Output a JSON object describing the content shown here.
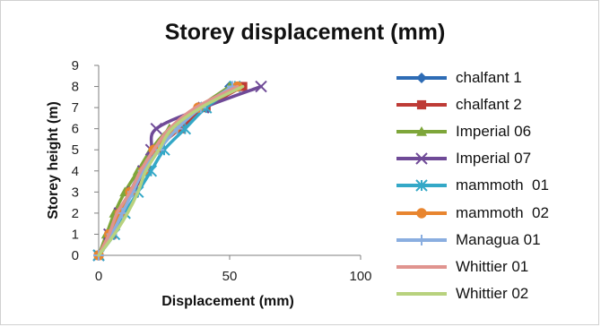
{
  "chart_data": {
    "type": "line",
    "title": "Storey displacement (mm)",
    "xlabel": "Displacement (mm)",
    "ylabel": "Storey height (m)",
    "xlim": [
      0,
      100
    ],
    "ylim": [
      0,
      9
    ],
    "xticks": [
      "0",
      "50",
      "100"
    ],
    "yticks": [
      "0",
      "1",
      "2",
      "3",
      "4",
      "5",
      "6",
      "7",
      "8",
      "9"
    ],
    "grid": false,
    "legend_position": "right",
    "series": [
      {
        "name": "chalfant 1",
        "color": "#2e6cb5",
        "marker": "diamond",
        "points": [
          [
            0,
            0
          ],
          [
            4,
            1
          ],
          [
            8,
            2
          ],
          [
            12,
            3
          ],
          [
            16,
            4
          ],
          [
            21,
            5
          ],
          [
            29,
            6
          ],
          [
            39,
            7
          ],
          [
            50,
            8
          ]
        ]
      },
      {
        "name": "chalfant 2",
        "color": "#be3b36",
        "marker": "square",
        "points": [
          [
            0,
            0
          ],
          [
            5,
            1
          ],
          [
            9,
            2
          ],
          [
            13,
            3
          ],
          [
            18,
            4
          ],
          [
            22,
            5
          ],
          [
            31,
            6
          ],
          [
            41,
            7
          ],
          [
            55,
            8
          ]
        ]
      },
      {
        "name": "Imperial 06",
        "color": "#7ea63a",
        "marker": "triangle",
        "points": [
          [
            0,
            0
          ],
          [
            3,
            1
          ],
          [
            6,
            2
          ],
          [
            10,
            3
          ],
          [
            15,
            4
          ],
          [
            20,
            5
          ],
          [
            27,
            6
          ],
          [
            38,
            7
          ],
          [
            50,
            8
          ]
        ]
      },
      {
        "name": "Imperial 07",
        "color": "#6f4a97",
        "marker": "x",
        "points": [
          [
            0,
            0
          ],
          [
            4,
            1
          ],
          [
            8,
            2
          ],
          [
            13,
            3
          ],
          [
            17,
            4
          ],
          [
            20,
            5
          ],
          [
            22,
            6
          ],
          [
            40,
            7
          ],
          [
            62,
            8
          ]
        ]
      },
      {
        "name": "mammoth  01",
        "color": "#34a8c7",
        "marker": "asterisk",
        "points": [
          [
            0,
            0
          ],
          [
            6,
            1
          ],
          [
            10,
            2
          ],
          [
            15,
            3
          ],
          [
            20,
            4
          ],
          [
            25,
            5
          ],
          [
            33,
            6
          ],
          [
            41,
            7
          ],
          [
            52,
            8
          ]
        ]
      },
      {
        "name": "mammoth  02",
        "color": "#e8852f",
        "marker": "circle",
        "points": [
          [
            0,
            0
          ],
          [
            4,
            1
          ],
          [
            8,
            2
          ],
          [
            12,
            3
          ],
          [
            17,
            4
          ],
          [
            21,
            5
          ],
          [
            29,
            6
          ],
          [
            38,
            7
          ],
          [
            53,
            8
          ]
        ]
      },
      {
        "name": "Managua 01",
        "color": "#8aaee0",
        "marker": "plus",
        "points": [
          [
            0,
            0
          ],
          [
            5,
            1
          ],
          [
            9,
            2
          ],
          [
            13,
            3
          ],
          [
            17,
            4
          ],
          [
            23,
            5
          ],
          [
            30,
            6
          ],
          [
            39,
            7
          ],
          [
            51,
            8
          ]
        ]
      },
      {
        "name": "Whittier 01",
        "color": "#e0948f",
        "marker": "none",
        "points": [
          [
            0,
            0
          ],
          [
            4,
            1
          ],
          [
            7,
            2
          ],
          [
            12,
            3
          ],
          [
            16,
            4
          ],
          [
            21,
            5
          ],
          [
            27,
            6
          ],
          [
            37,
            7
          ],
          [
            53,
            8
          ]
        ]
      },
      {
        "name": "Whittier 02",
        "color": "#b8d27e",
        "marker": "none",
        "points": [
          [
            0,
            0
          ],
          [
            6,
            1
          ],
          [
            11,
            2
          ],
          [
            15,
            3
          ],
          [
            18,
            4
          ],
          [
            23,
            5
          ],
          [
            28,
            6
          ],
          [
            39,
            7
          ],
          [
            55,
            8
          ]
        ]
      }
    ]
  }
}
